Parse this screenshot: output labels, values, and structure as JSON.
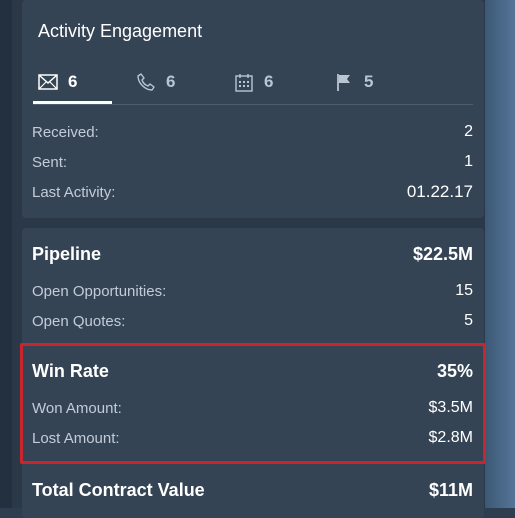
{
  "activity": {
    "title": "Activity Engagement",
    "tabs": [
      {
        "icon": "mail-icon",
        "count": "6"
      },
      {
        "icon": "phone-icon",
        "count": "6"
      },
      {
        "icon": "calendar-icon",
        "count": "6"
      },
      {
        "icon": "flag-icon",
        "count": "5"
      }
    ],
    "rows": [
      {
        "label": "Received:",
        "value": "2"
      },
      {
        "label": "Sent:",
        "value": "1"
      },
      {
        "label": "Last Activity:",
        "value": "01.22.17"
      }
    ]
  },
  "pipeline": {
    "label": "Pipeline",
    "value": "$22.5M",
    "rows": [
      {
        "label": "Open Opportunities:",
        "value": "15"
      },
      {
        "label": "Open Quotes:",
        "value": "5"
      }
    ]
  },
  "win_rate": {
    "label": "Win Rate",
    "value": "35%",
    "rows": [
      {
        "label": "Won Amount:",
        "value": "$3.5M"
      },
      {
        "label": "Lost Amount:",
        "value": "$2.8M"
      }
    ]
  },
  "total_contract": {
    "label": "Total Contract Value",
    "value": "$11M"
  },
  "colors": {
    "highlight": "#c9252c"
  }
}
